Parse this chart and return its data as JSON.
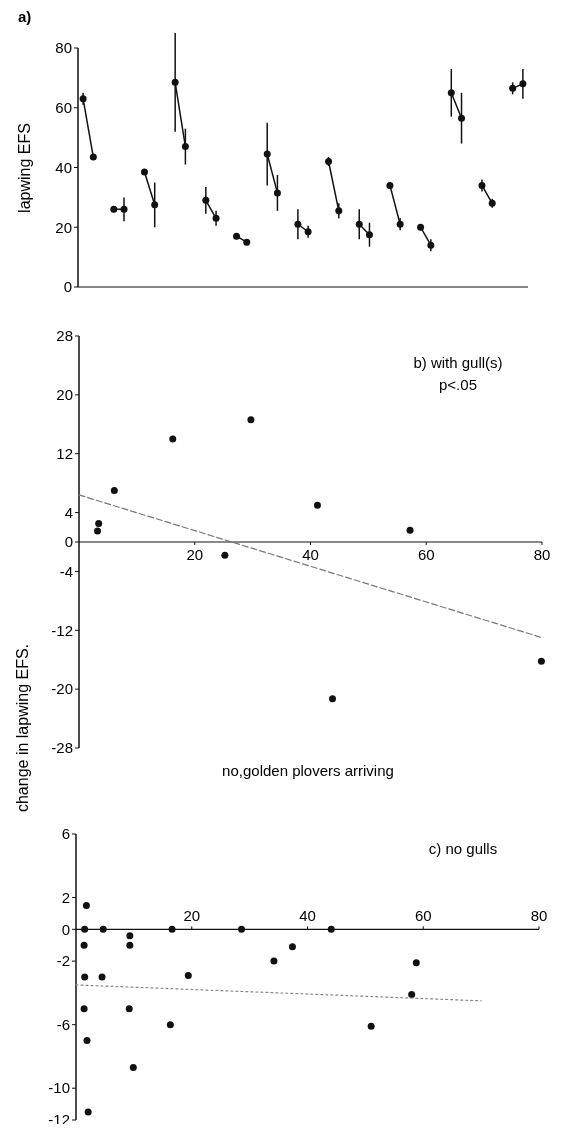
{
  "chart_data": [
    {
      "type": "line",
      "title": "a)",
      "ylabel": "lapwing EFS",
      "categories": [
        null,
        null,
        null,
        null,
        null,
        null,
        null,
        null,
        null,
        null,
        null,
        null,
        null,
        null,
        null,
        null,
        null,
        null,
        null,
        null,
        null,
        null,
        null,
        null,
        null,
        null,
        null,
        null,
        null,
        null,
        null,
        null,
        null,
        null,
        null,
        null,
        null,
        null,
        null,
        null,
        null,
        null,
        null,
        null
      ],
      "series": [
        {
          "color": "#111111",
          "values": [
            63,
            43.5,
            null,
            26,
            26,
            null,
            38.5,
            27.5,
            null,
            68.5,
            47,
            null,
            29,
            23,
            null,
            17,
            15,
            null,
            44.5,
            31.5,
            null,
            21,
            18.5,
            null,
            42,
            25.5,
            null,
            21,
            17.5,
            null,
            34,
            21,
            null,
            20,
            14,
            null,
            65,
            56.5,
            null,
            34,
            28,
            null,
            66.5,
            68
          ],
          "errors": [
            2,
            1,
            null,
            1,
            4,
            null,
            1,
            7.5,
            null,
            16.5,
            6,
            null,
            4.5,
            2.5,
            null,
            1,
            1,
            null,
            10.5,
            6,
            null,
            5,
            2,
            null,
            1.5,
            2.5,
            null,
            5,
            4,
            null,
            1,
            2,
            null,
            1,
            2,
            null,
            8,
            8.5,
            null,
            2,
            1.5,
            null,
            2,
            5
          ]
        }
      ],
      "ylim": [
        0,
        80
      ],
      "yticks": [
        0,
        20,
        40,
        60,
        80
      ],
      "tick_labels": "y",
      "marker": "circle",
      "line_style": "solid"
    },
    {
      "type": "scatter",
      "title": "b) with gull(s)",
      "annotations": [
        "p<.05"
      ],
      "xlabel": "no,golden plovers arriving",
      "ylabel": "change in lapwing EFS.",
      "xlim": [
        0,
        80
      ],
      "xticks": [
        20,
        40,
        60,
        80
      ],
      "ylim": [
        -28,
        28
      ],
      "yticks": [
        28,
        20,
        12,
        4,
        0,
        -4,
        -12,
        -20,
        -28
      ],
      "marker": "circle",
      "series": [
        {
          "color": "#111111",
          "x": [
            3.2,
            3.4,
            6.1,
            16.2,
            25.2,
            29.7,
            41.2,
            57.2,
            43.8,
            79.9
          ],
          "values": [
            1.5,
            2.5,
            7,
            14,
            -1.8,
            16.6,
            5,
            1.6,
            -21.3,
            -16.2
          ]
        },
        {
          "type": "line",
          "color": "#777777",
          "line_style": "dashed",
          "marker": "none",
          "x": [
            0,
            80
          ],
          "values": [
            6.4,
            -13
          ]
        }
      ]
    },
    {
      "type": "scatter",
      "title": "c) no gulls",
      "xlim": [
        0,
        80
      ],
      "xticks": [
        20,
        40,
        60,
        80
      ],
      "ylim": [
        -12,
        6
      ],
      "yticks": [
        6,
        2,
        0,
        -2,
        -6,
        -10,
        -12
      ],
      "marker": "circle",
      "series": [
        {
          "color": "#111111",
          "x": [
            1.8,
            1.5,
            4.7,
            1.4,
            9.3,
            9.3,
            16.6,
            28.6,
            44.1,
            1.5,
            4.5,
            19.4,
            34.2,
            37.4,
            58.8,
            58,
            1.4,
            9.2,
            16.3,
            51,
            1.9,
            9.9,
            2.1
          ],
          "values": [
            1.5,
            0,
            0,
            -1,
            -0.4,
            -1,
            0,
            0,
            0,
            -3,
            -3,
            -2.9,
            -2,
            -1.1,
            -2.1,
            -4.1,
            -5,
            -5,
            -6,
            -6.1,
            -7,
            -8.7,
            -11.5
          ]
        },
        {
          "type": "line",
          "color": "#888888",
          "line_style": "dotted",
          "marker": "none",
          "x": [
            0,
            70
          ],
          "values": [
            -3.5,
            -4.5
          ]
        }
      ]
    }
  ]
}
